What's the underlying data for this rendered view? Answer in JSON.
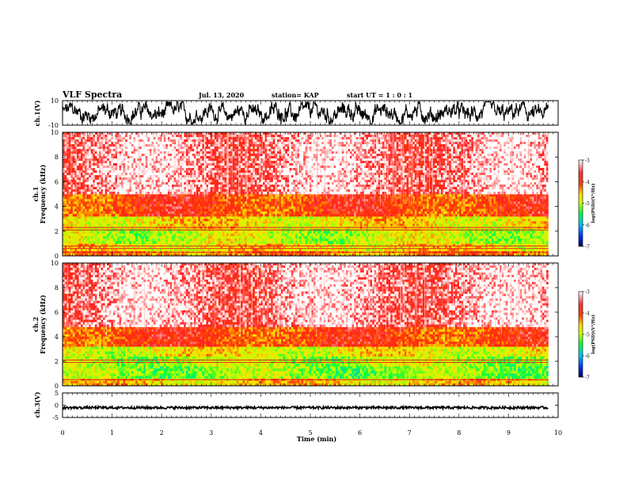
{
  "header": {
    "title": "VLF Spectra",
    "date": "Jul. 13, 2020",
    "station": "station= KAP",
    "start_ut": "start UT =  1 : 0  : 1"
  },
  "chart_data": [
    {
      "type": "line",
      "panel": "ch1-waveform",
      "ylabel": "ch.1(V)",
      "ylim": [
        -10,
        10
      ],
      "y_ticks": [
        "10",
        "-10"
      ],
      "color": "#000000",
      "description": "noisy waveform oscillating roughly between -8 V and +8 V over 0 to 9.8 min"
    },
    {
      "type": "heatmap",
      "panel": "ch1-spectrogram",
      "ylabel": "ch.1\nFrequency (kHz)",
      "ylabel_line1": "ch.1",
      "ylabel_line2": "Frequency (kHz)",
      "ylim": [
        0,
        10
      ],
      "y_ticks": [
        "0",
        "2",
        "4",
        "6",
        "8",
        "10"
      ],
      "xlim": [
        0,
        9.8
      ],
      "bands": [
        {
          "f_from": 0.0,
          "f_to": 0.4,
          "level": -4.2
        },
        {
          "f_from": 0.4,
          "f_to": 1.0,
          "level": -4.6
        },
        {
          "f_from": 1.0,
          "f_to": 2.2,
          "level": -4.9
        },
        {
          "f_from": 2.2,
          "f_to": 3.2,
          "level": -4.6
        },
        {
          "f_from": 3.2,
          "f_to": 5.0,
          "level": -3.9
        },
        {
          "f_from": 5.0,
          "f_to": 10.0,
          "level": -3.2
        }
      ],
      "lines_khz": [
        0.3,
        0.6,
        0.8,
        2.1,
        2.3
      ]
    },
    {
      "type": "heatmap",
      "panel": "ch2-spectrogram",
      "ylabel_line1": "ch.2",
      "ylabel_line2": "Frequency (kHz)",
      "ylim": [
        0,
        10
      ],
      "y_ticks": [
        "0",
        "2",
        "4",
        "6",
        "8",
        "10"
      ],
      "xlim": [
        0,
        9.8
      ],
      "bands": [
        {
          "f_from": 0.0,
          "f_to": 0.6,
          "level": -4.5
        },
        {
          "f_from": 0.6,
          "f_to": 1.6,
          "level": -5.1
        },
        {
          "f_from": 1.6,
          "f_to": 2.4,
          "level": -5.0
        },
        {
          "f_from": 2.4,
          "f_to": 3.2,
          "level": -4.7
        },
        {
          "f_from": 3.2,
          "f_to": 4.8,
          "level": -3.9
        },
        {
          "f_from": 4.8,
          "f_to": 10.0,
          "level": -3.2
        }
      ],
      "lines_khz": [
        0.5,
        1.9,
        2.1
      ]
    },
    {
      "type": "line",
      "panel": "ch3-waveform",
      "ylabel": "ch.3(V)",
      "ylim": [
        -5,
        5
      ],
      "y_ticks": [
        "5",
        "0",
        "-5"
      ],
      "color": "#000000",
      "description": "flat trace near 0 V with small thick noise band"
    }
  ],
  "colorbar": {
    "label": "log(PSD)(V²/Hz)",
    "ticks": [
      "-3",
      "-4",
      "-5",
      "-6",
      "-7"
    ],
    "range": [
      -7,
      -3
    ],
    "colors": [
      "#000060",
      "#0030ff",
      "#00c0ff",
      "#00ff40",
      "#c0ff00",
      "#ffe000",
      "#ff4000",
      "#ff2020",
      "#ffffff"
    ]
  },
  "x_axis": {
    "label": "Time (min)",
    "ticks": [
      "0",
      "1",
      "2",
      "3",
      "4",
      "5",
      "6",
      "7",
      "8",
      "9",
      "10"
    ],
    "xlim": [
      0,
      10
    ]
  }
}
